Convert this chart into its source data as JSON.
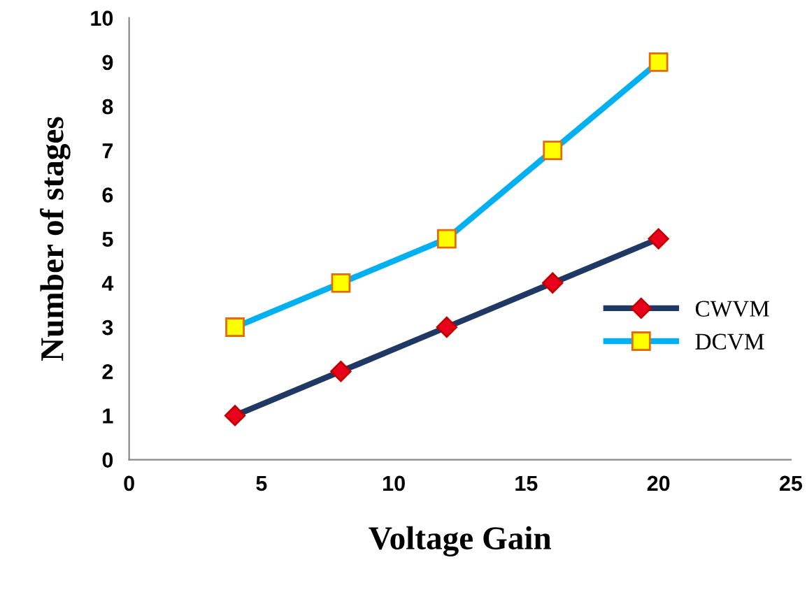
{
  "chart_data": {
    "type": "line",
    "xlabel": "Voltage Gain",
    "ylabel": "Number of stages",
    "x": [
      4,
      8,
      12,
      16,
      20
    ],
    "series": [
      {
        "name": "CWVM",
        "color": "#1f3864",
        "marker": "diamond",
        "values": [
          1,
          2,
          3,
          4,
          5
        ]
      },
      {
        "name": "DCVM",
        "color": "#00b0f0",
        "marker": "square",
        "values": [
          3,
          4,
          5,
          7,
          9
        ]
      }
    ],
    "xlim": [
      0,
      25
    ],
    "xticks": [
      0,
      5,
      10,
      15,
      20,
      25
    ],
    "ylim": [
      0,
      10
    ],
    "yticks": [
      0,
      1,
      2,
      3,
      4,
      5,
      6,
      7,
      8,
      9,
      10
    ],
    "grid": false,
    "legend": "right",
    "line_style": "solid"
  }
}
